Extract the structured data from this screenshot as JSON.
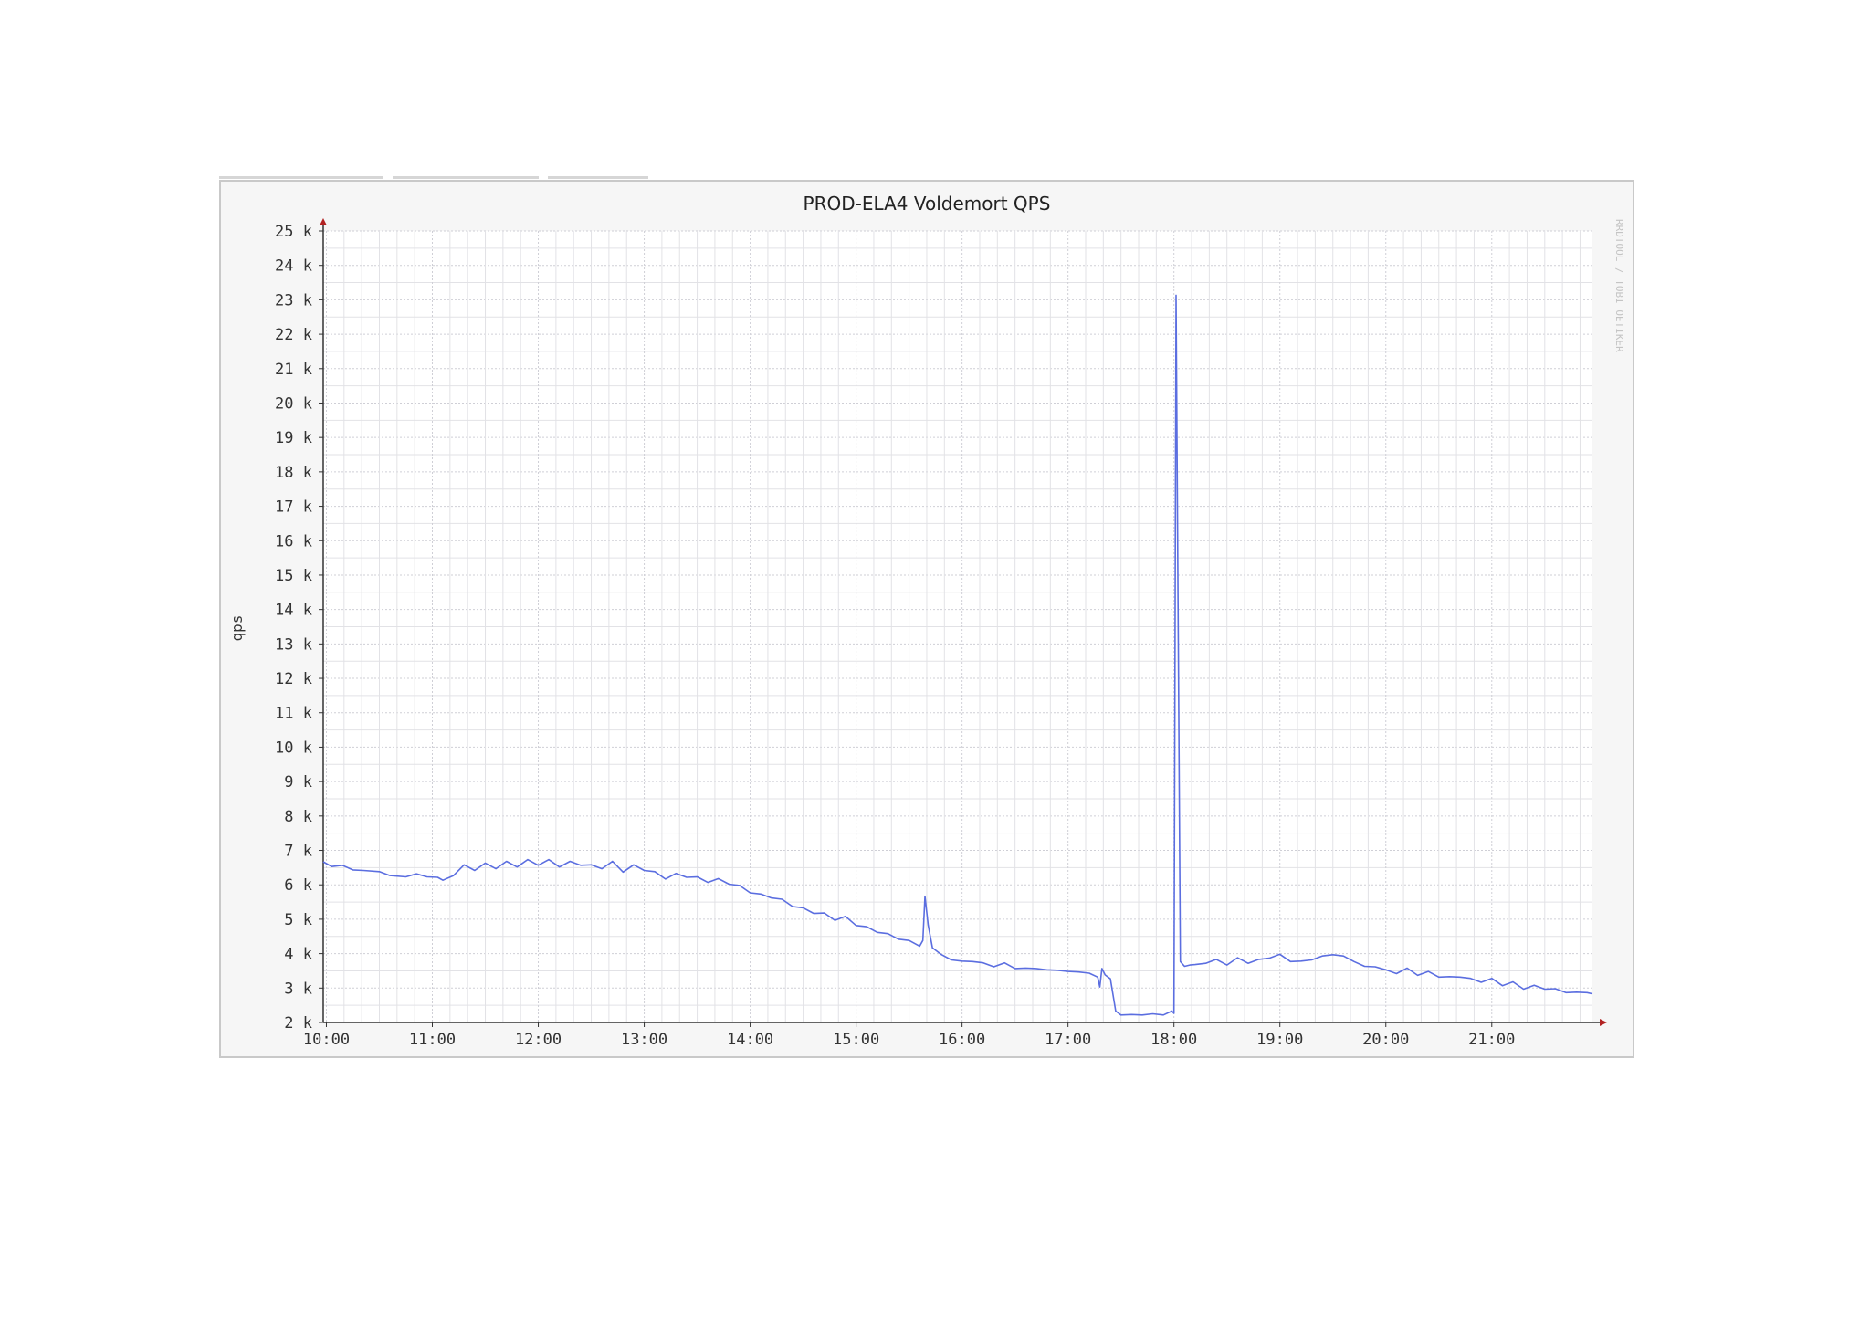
{
  "chart_data": {
    "type": "line",
    "title": "PROD-ELA4 Voldemort QPS",
    "ylabel": "qps",
    "watermark": "RRDTOOL / TOBI OETIKER",
    "ylim": [
      2,
      25
    ],
    "y_unit_suffix": "k",
    "yticks": [
      2,
      3,
      4,
      5,
      6,
      7,
      8,
      9,
      10,
      11,
      12,
      13,
      14,
      15,
      16,
      17,
      18,
      19,
      20,
      21,
      22,
      23,
      24,
      25
    ],
    "ytick_labels": [
      "2 k",
      "3 k",
      "4 k",
      "5 k",
      "6 k",
      "7 k",
      "8 k",
      "9 k",
      "10 k",
      "11 k",
      "12 k",
      "13 k",
      "14 k",
      "15 k",
      "16 k",
      "17 k",
      "18 k",
      "19 k",
      "20 k",
      "21 k",
      "22 k",
      "23 k",
      "24 k",
      "25 k"
    ],
    "xlim": [
      9.97,
      21.95
    ],
    "xticks": [
      10,
      11,
      12,
      13,
      14,
      15,
      16,
      17,
      18,
      19,
      20,
      21
    ],
    "xtick_labels": [
      "10:00",
      "11:00",
      "12:00",
      "13:00",
      "14:00",
      "15:00",
      "16:00",
      "17:00",
      "18:00",
      "19:00",
      "20:00",
      "21:00"
    ],
    "grid": true,
    "colors": {
      "line": "#5b6ee0",
      "grid": "#e2e2e6",
      "grid_major": "#cfcfd6",
      "axis": "#333333",
      "arrow": "#b22222",
      "plot_bg": "#ffffff"
    },
    "series": [
      {
        "x": [
          9.97,
          10.05,
          10.15,
          10.25,
          10.35,
          10.5,
          10.6,
          10.75,
          10.85,
          10.95,
          11.05,
          11.1,
          11.2,
          11.3,
          11.4,
          11.5,
          11.6,
          11.7,
          11.8,
          11.9,
          12.0,
          12.1,
          12.2,
          12.3,
          12.4,
          12.5,
          12.6,
          12.7,
          12.8,
          12.9,
          13.0,
          13.1,
          13.2,
          13.3,
          13.4,
          13.5,
          13.6,
          13.7,
          13.8,
          13.9,
          14.0,
          14.1,
          14.2,
          14.3,
          14.4,
          14.5,
          14.6,
          14.7,
          14.8,
          14.9,
          15.0,
          15.1,
          15.2,
          15.3,
          15.4,
          15.5,
          15.6,
          15.63,
          15.65,
          15.68,
          15.72,
          15.8,
          15.9,
          16.0,
          16.1,
          16.2,
          16.3,
          16.4,
          16.5,
          16.6,
          16.7,
          16.8,
          16.9,
          17.0,
          17.1,
          17.2,
          17.28,
          17.3,
          17.32,
          17.35,
          17.4,
          17.45,
          17.5,
          17.6,
          17.7,
          17.8,
          17.9,
          17.98,
          18.0,
          18.02,
          18.06,
          18.1,
          18.15,
          18.2,
          18.3,
          18.4,
          18.5,
          18.6,
          18.7,
          18.8,
          18.9,
          19.0,
          19.1,
          19.2,
          19.3,
          19.4,
          19.5,
          19.6,
          19.7,
          19.8,
          19.9,
          20.0,
          20.1,
          20.2,
          20.3,
          20.4,
          20.5,
          20.6,
          20.7,
          20.8,
          20.9,
          21.0,
          21.1,
          21.2,
          21.3,
          21.4,
          21.5,
          21.6,
          21.7,
          21.8,
          21.9,
          21.95
        ],
        "y": [
          6.7,
          6.5,
          6.6,
          6.4,
          6.45,
          6.35,
          6.3,
          6.2,
          6.35,
          6.2,
          6.25,
          6.1,
          6.3,
          6.55,
          6.45,
          6.6,
          6.5,
          6.65,
          6.55,
          6.7,
          6.6,
          6.7,
          6.55,
          6.65,
          6.6,
          6.55,
          6.5,
          6.65,
          6.4,
          6.55,
          6.45,
          6.35,
          6.2,
          6.3,
          6.25,
          6.2,
          6.1,
          6.15,
          6.05,
          5.95,
          5.8,
          5.7,
          5.65,
          5.55,
          5.4,
          5.3,
          5.2,
          5.15,
          5.0,
          5.05,
          4.85,
          4.75,
          4.65,
          4.55,
          4.45,
          4.35,
          4.25,
          4.35,
          5.7,
          4.8,
          4.2,
          3.95,
          3.85,
          3.75,
          3.8,
          3.7,
          3.65,
          3.7,
          3.6,
          3.55,
          3.6,
          3.5,
          3.55,
          3.45,
          3.5,
          3.4,
          3.35,
          3.0,
          3.6,
          3.35,
          3.3,
          2.3,
          2.25,
          2.2,
          2.25,
          2.22,
          2.25,
          2.3,
          2.3,
          23.1,
          3.8,
          3.6,
          3.7,
          3.65,
          3.75,
          3.8,
          3.7,
          3.85,
          3.75,
          3.8,
          3.9,
          3.95,
          3.8,
          3.75,
          3.85,
          3.9,
          4.0,
          3.9,
          3.8,
          3.6,
          3.65,
          3.5,
          3.45,
          3.55,
          3.4,
          3.45,
          3.35,
          3.3,
          3.35,
          3.25,
          3.2,
          3.25,
          3.1,
          3.15,
          3.0,
          3.05,
          3.0,
          2.95,
          2.9,
          2.85,
          2.9,
          2.8
        ]
      }
    ]
  }
}
